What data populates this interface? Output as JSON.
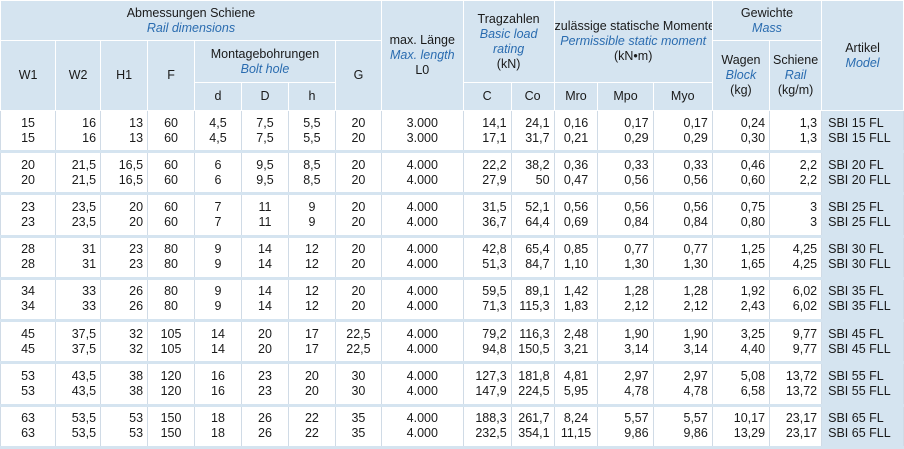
{
  "header": {
    "dims_de": "Abmessungen Schiene",
    "dims_en": "Rail dimensions",
    "load_de": "Tragzahlen",
    "load_en1": "Basic load",
    "load_en2": "rating",
    "load_unit": "(kN)",
    "moment_de": "zulässige statische Momente",
    "moment_en": "Permissible static moment",
    "moment_unit": "(kN•m)",
    "weight_de": "Gewichte",
    "weight_en": "Mass",
    "article_de": "Artikel",
    "article_en": "Model",
    "w1": "W1",
    "w2": "W2",
    "h1": "H1",
    "f": "F",
    "bolt_de": "Montagebohrungen",
    "bolt_en": "Bolt hole",
    "g": "G",
    "len_de": "max. Länge",
    "len_en": "Max. length",
    "len_sym": "L0",
    "wagen_de": "Wagen",
    "wagen_en": "Block",
    "wagen_unit": "(kg)",
    "rail_de": "Schiene",
    "rail_en": "Rail",
    "rail_unit": "(kg/m)",
    "d": "d",
    "D": "D",
    "h": "h",
    "c": "C",
    "co": "Co",
    "mro": "Mro",
    "mpo": "Mpo",
    "myo": "Myo"
  },
  "rows": [
    {
      "w1": [
        "15",
        "15"
      ],
      "w2": [
        "16",
        "16"
      ],
      "h1": [
        "13",
        "13"
      ],
      "f": [
        "60",
        "60"
      ],
      "d": [
        "4,5",
        "4,5"
      ],
      "D": [
        "7,5",
        "7,5"
      ],
      "h": [
        "5,5",
        "5,5"
      ],
      "g": [
        "20",
        "20"
      ],
      "l0": [
        "3.000",
        "3.000"
      ],
      "c": [
        "14,1",
        "17,1"
      ],
      "co": [
        "24,1",
        "31,7"
      ],
      "mro": [
        "0,16",
        "0,21"
      ],
      "mpo": [
        "0,17",
        "0,29"
      ],
      "myo": [
        "0,17",
        "0,29"
      ],
      "block": [
        "0,24",
        "0,30"
      ],
      "rail": [
        "1,3",
        "1,3"
      ],
      "model": [
        "SBI 15 FL",
        "SBI 15 FLL"
      ]
    },
    {
      "w1": [
        "20",
        "20"
      ],
      "w2": [
        "21,5",
        "21,5"
      ],
      "h1": [
        "16,5",
        "16,5"
      ],
      "f": [
        "60",
        "60"
      ],
      "d": [
        "6",
        "6"
      ],
      "D": [
        "9,5",
        "9,5"
      ],
      "h": [
        "8,5",
        "8,5"
      ],
      "g": [
        "20",
        "20"
      ],
      "l0": [
        "4.000",
        "4.000"
      ],
      "c": [
        "22,2",
        "27,9"
      ],
      "co": [
        "38,2",
        "50"
      ],
      "mro": [
        "0,36",
        "0,47"
      ],
      "mpo": [
        "0,33",
        "0,56"
      ],
      "myo": [
        "0,33",
        "0,56"
      ],
      "block": [
        "0,46",
        "0,60"
      ],
      "rail": [
        "2,2",
        "2,2"
      ],
      "model": [
        "SBI 20 FL",
        "SBI 20 FLL"
      ]
    },
    {
      "w1": [
        "23",
        "23"
      ],
      "w2": [
        "23,5",
        "23,5"
      ],
      "h1": [
        "20",
        "20"
      ],
      "f": [
        "60",
        "60"
      ],
      "d": [
        "7",
        "7"
      ],
      "D": [
        "11",
        "11"
      ],
      "h": [
        "9",
        "9"
      ],
      "g": [
        "20",
        "20"
      ],
      "l0": [
        "4.000",
        "4.000"
      ],
      "c": [
        "31,5",
        "36,7"
      ],
      "co": [
        "52,1",
        "64,4"
      ],
      "mro": [
        "0,56",
        "0,69"
      ],
      "mpo": [
        "0,56",
        "0,84"
      ],
      "myo": [
        "0,56",
        "0,84"
      ],
      "block": [
        "0,75",
        "0,80"
      ],
      "rail": [
        "3",
        "3"
      ],
      "model": [
        "SBI 25 FL",
        "SBI 25 FLL"
      ]
    },
    {
      "w1": [
        "28",
        "28"
      ],
      "w2": [
        "31",
        "31"
      ],
      "h1": [
        "23",
        "23"
      ],
      "f": [
        "80",
        "80"
      ],
      "d": [
        "9",
        "9"
      ],
      "D": [
        "14",
        "14"
      ],
      "h": [
        "12",
        "12"
      ],
      "g": [
        "20",
        "20"
      ],
      "l0": [
        "4.000",
        "4.000"
      ],
      "c": [
        "42,8",
        "51,3"
      ],
      "co": [
        "65,4",
        "84,7"
      ],
      "mro": [
        "0,85",
        "1,10"
      ],
      "mpo": [
        "0,77",
        "1,30"
      ],
      "myo": [
        "0,77",
        "1,30"
      ],
      "block": [
        "1,25",
        "1,65"
      ],
      "rail": [
        "4,25",
        "4,25"
      ],
      "model": [
        "SBI 30 FL",
        "SBI 30 FLL"
      ]
    },
    {
      "w1": [
        "34",
        "34"
      ],
      "w2": [
        "33",
        "33"
      ],
      "h1": [
        "26",
        "26"
      ],
      "f": [
        "80",
        "80"
      ],
      "d": [
        "9",
        "9"
      ],
      "D": [
        "14",
        "14"
      ],
      "h": [
        "12",
        "12"
      ],
      "g": [
        "20",
        "20"
      ],
      "l0": [
        "4.000",
        "4.000"
      ],
      "c": [
        "59,5",
        "71,3"
      ],
      "co": [
        "89,1",
        "115,3"
      ],
      "mro": [
        "1,42",
        "1,83"
      ],
      "mpo": [
        "1,28",
        "2,12"
      ],
      "myo": [
        "1,28",
        "2,12"
      ],
      "block": [
        "1,92",
        "2,43"
      ],
      "rail": [
        "6,02",
        "6,02"
      ],
      "model": [
        "SBI 35 FL",
        "SBI 35 FLL"
      ]
    },
    {
      "w1": [
        "45",
        "45"
      ],
      "w2": [
        "37,5",
        "37,5"
      ],
      "h1": [
        "32",
        "32"
      ],
      "f": [
        "105",
        "105"
      ],
      "d": [
        "14",
        "14"
      ],
      "D": [
        "20",
        "20"
      ],
      "h": [
        "17",
        "17"
      ],
      "g": [
        "22,5",
        "22,5"
      ],
      "l0": [
        "4.000",
        "4.000"
      ],
      "c": [
        "79,2",
        "94,8"
      ],
      "co": [
        "116,3",
        "150,5"
      ],
      "mro": [
        "2,48",
        "3,21"
      ],
      "mpo": [
        "1,90",
        "3,14"
      ],
      "myo": [
        "1,90",
        "3,14"
      ],
      "block": [
        "3,25",
        "4,40"
      ],
      "rail": [
        "9,77",
        "9,77"
      ],
      "model": [
        "SBI 45 FL",
        "SBI 45 FLL"
      ]
    },
    {
      "w1": [
        "53",
        "53"
      ],
      "w2": [
        "43,5",
        "43,5"
      ],
      "h1": [
        "38",
        "38"
      ],
      "f": [
        "120",
        "120"
      ],
      "d": [
        "16",
        "16"
      ],
      "D": [
        "23",
        "23"
      ],
      "h": [
        "20",
        "20"
      ],
      "g": [
        "30",
        "30"
      ],
      "l0": [
        "4.000",
        "4.000"
      ],
      "c": [
        "127,3",
        "147,9"
      ],
      "co": [
        "181,8",
        "224,5"
      ],
      "mro": [
        "4,81",
        "5,95"
      ],
      "mpo": [
        "2,97",
        "4,78"
      ],
      "myo": [
        "2,97",
        "4,78"
      ],
      "block": [
        "5,08",
        "6,58"
      ],
      "rail": [
        "13,72",
        "13,72"
      ],
      "model": [
        "SBI 55 FL",
        "SBI 55 FLL"
      ]
    },
    {
      "w1": [
        "63",
        "63"
      ],
      "w2": [
        "53,5",
        "53,5"
      ],
      "h1": [
        "53",
        "53"
      ],
      "f": [
        "150",
        "150"
      ],
      "d": [
        "18",
        "18"
      ],
      "D": [
        "26",
        "26"
      ],
      "h": [
        "22",
        "22"
      ],
      "g": [
        "35",
        "35"
      ],
      "l0": [
        "4.000",
        "4.000"
      ],
      "c": [
        "188,3",
        "232,5"
      ],
      "co": [
        "261,7",
        "354,1"
      ],
      "mro": [
        "8,24",
        "11,15"
      ],
      "mpo": [
        "5,57",
        "9,86"
      ],
      "myo": [
        "5,57",
        "9,86"
      ],
      "block": [
        "10,17",
        "13,29"
      ],
      "rail": [
        "23,17",
        "23,17"
      ],
      "model": [
        "SBI 65 FL",
        "SBI 65 FLL"
      ]
    }
  ]
}
